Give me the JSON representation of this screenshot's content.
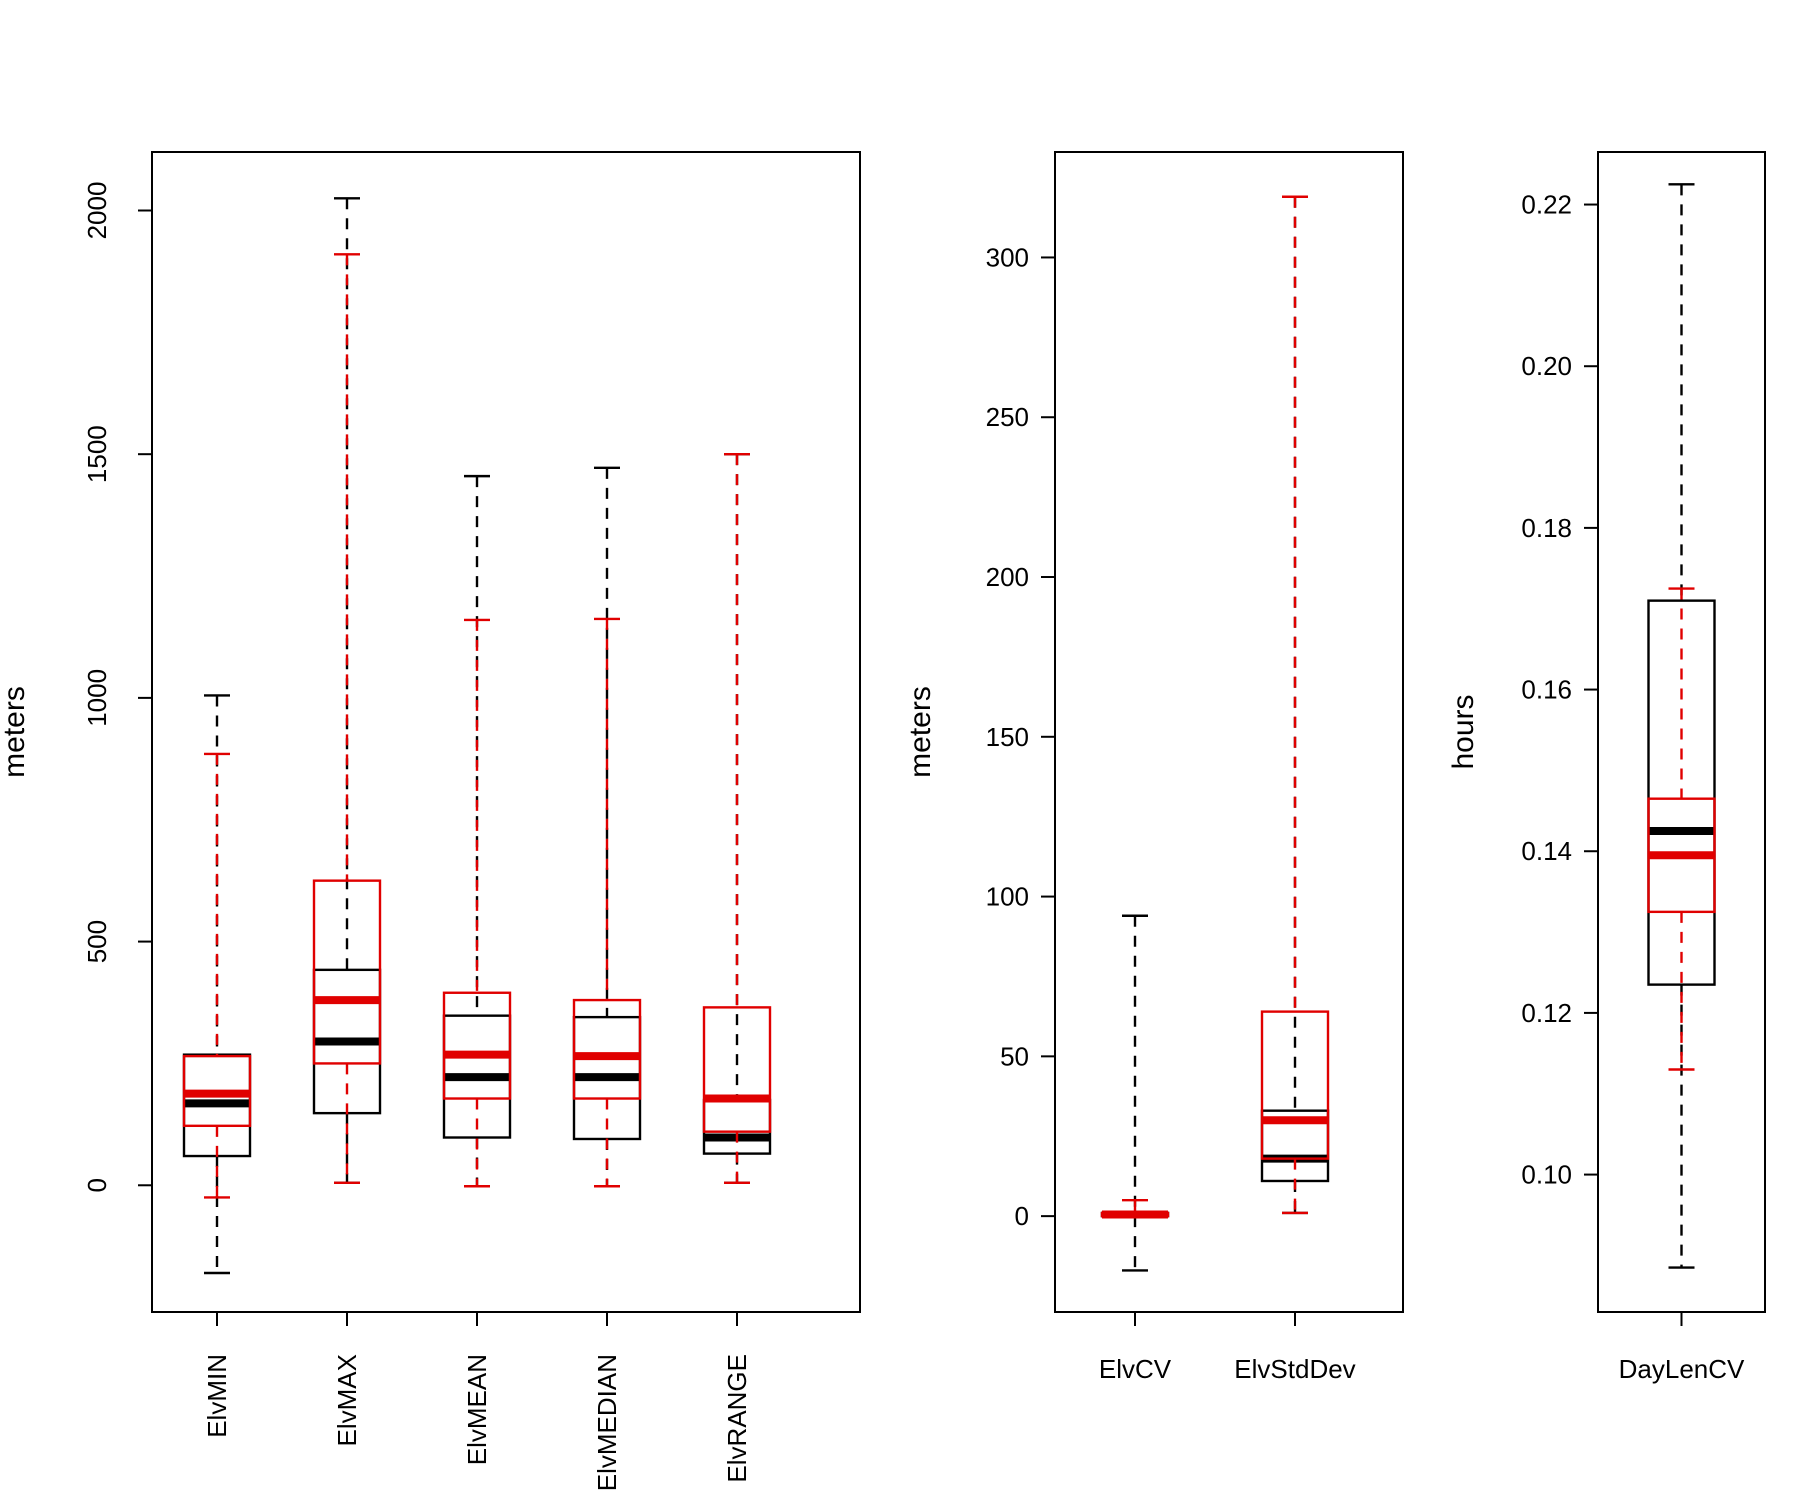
{
  "colors": {
    "groupA": "#000000",
    "groupB": "#e00000"
  },
  "chart_data": [
    {
      "type": "boxplot",
      "ylabel": "meters",
      "ylim": [
        -260,
        2120
      ],
      "yticks": [
        0,
        500,
        1000,
        1500,
        2000
      ],
      "tick_labels_rotated": true,
      "categories": [
        "ElvMIN",
        "ElvMAX",
        "ElvMEAN",
        "ElvMEDIAN",
        "ElvRANGE"
      ],
      "series": [
        {
          "name": "black",
          "boxes": [
            {
              "low": -180,
              "q1": 60,
              "median": 168,
              "q3": 268,
              "high": 1005
            },
            {
              "low": 5,
              "q1": 148,
              "median": 295,
              "q3": 442,
              "high": 2025
            },
            {
              "low": -2,
              "q1": 98,
              "median": 222,
              "q3": 348,
              "high": 1455
            },
            {
              "low": -2,
              "q1": 95,
              "median": 222,
              "q3": 345,
              "high": 1472
            },
            {
              "low": 5,
              "q1": 65,
              "median": 98,
              "q3": 175,
              "high": 1500
            }
          ]
        },
        {
          "name": "red",
          "boxes": [
            {
              "low": -25,
              "q1": 122,
              "median": 188,
              "q3": 265,
              "high": 885
            },
            {
              "low": 5,
              "q1": 250,
              "median": 380,
              "q3": 625,
              "high": 1910
            },
            {
              "low": -2,
              "q1": 178,
              "median": 268,
              "q3": 395,
              "high": 1160
            },
            {
              "low": -2,
              "q1": 178,
              "median": 265,
              "q3": 380,
              "high": 1162
            },
            {
              "low": 5,
              "q1": 110,
              "median": 178,
              "q3": 365,
              "high": 1500
            }
          ]
        }
      ]
    },
    {
      "type": "boxplot",
      "ylabel": "meters",
      "ylim": [
        -30,
        333
      ],
      "yticks": [
        0,
        50,
        100,
        150,
        200,
        250,
        300
      ],
      "tick_labels_rotated": false,
      "categories": [
        "ElvCV",
        "ElvStdDev"
      ],
      "series": [
        {
          "name": "black",
          "boxes": [
            {
              "low": -17,
              "q1": 0,
              "median": 0.5,
              "q3": 1,
              "high": 94
            },
            {
              "low": 1,
              "q1": 11,
              "median": 18,
              "q3": 33,
              "high": 319
            }
          ]
        },
        {
          "name": "red",
          "boxes": [
            {
              "low": 0,
              "q1": 0,
              "median": 0.5,
              "q3": 1,
              "high": 5
            },
            {
              "low": 1,
              "q1": 18,
              "median": 30,
              "q3": 64,
              "high": 319
            }
          ]
        }
      ]
    },
    {
      "type": "boxplot",
      "ylabel": "hours",
      "ylim": [
        0.083,
        0.2265
      ],
      "yticks": [
        0.1,
        0.12,
        0.14,
        0.16,
        0.18,
        0.2,
        0.22
      ],
      "ytick_labels": [
        "0.10",
        "0.12",
        "0.14",
        "0.16",
        "0.18",
        "0.20",
        "0.22"
      ],
      "tick_labels_rotated": false,
      "categories": [
        "DayLenCV"
      ],
      "series": [
        {
          "name": "black",
          "boxes": [
            {
              "low": 0.0885,
              "q1": 0.1235,
              "median": 0.1425,
              "q3": 0.171,
              "high": 0.2225
            }
          ]
        },
        {
          "name": "red",
          "boxes": [
            {
              "low": 0.113,
              "q1": 0.1325,
              "median": 0.1395,
              "q3": 0.1465,
              "high": 0.1725
            }
          ]
        }
      ]
    }
  ]
}
